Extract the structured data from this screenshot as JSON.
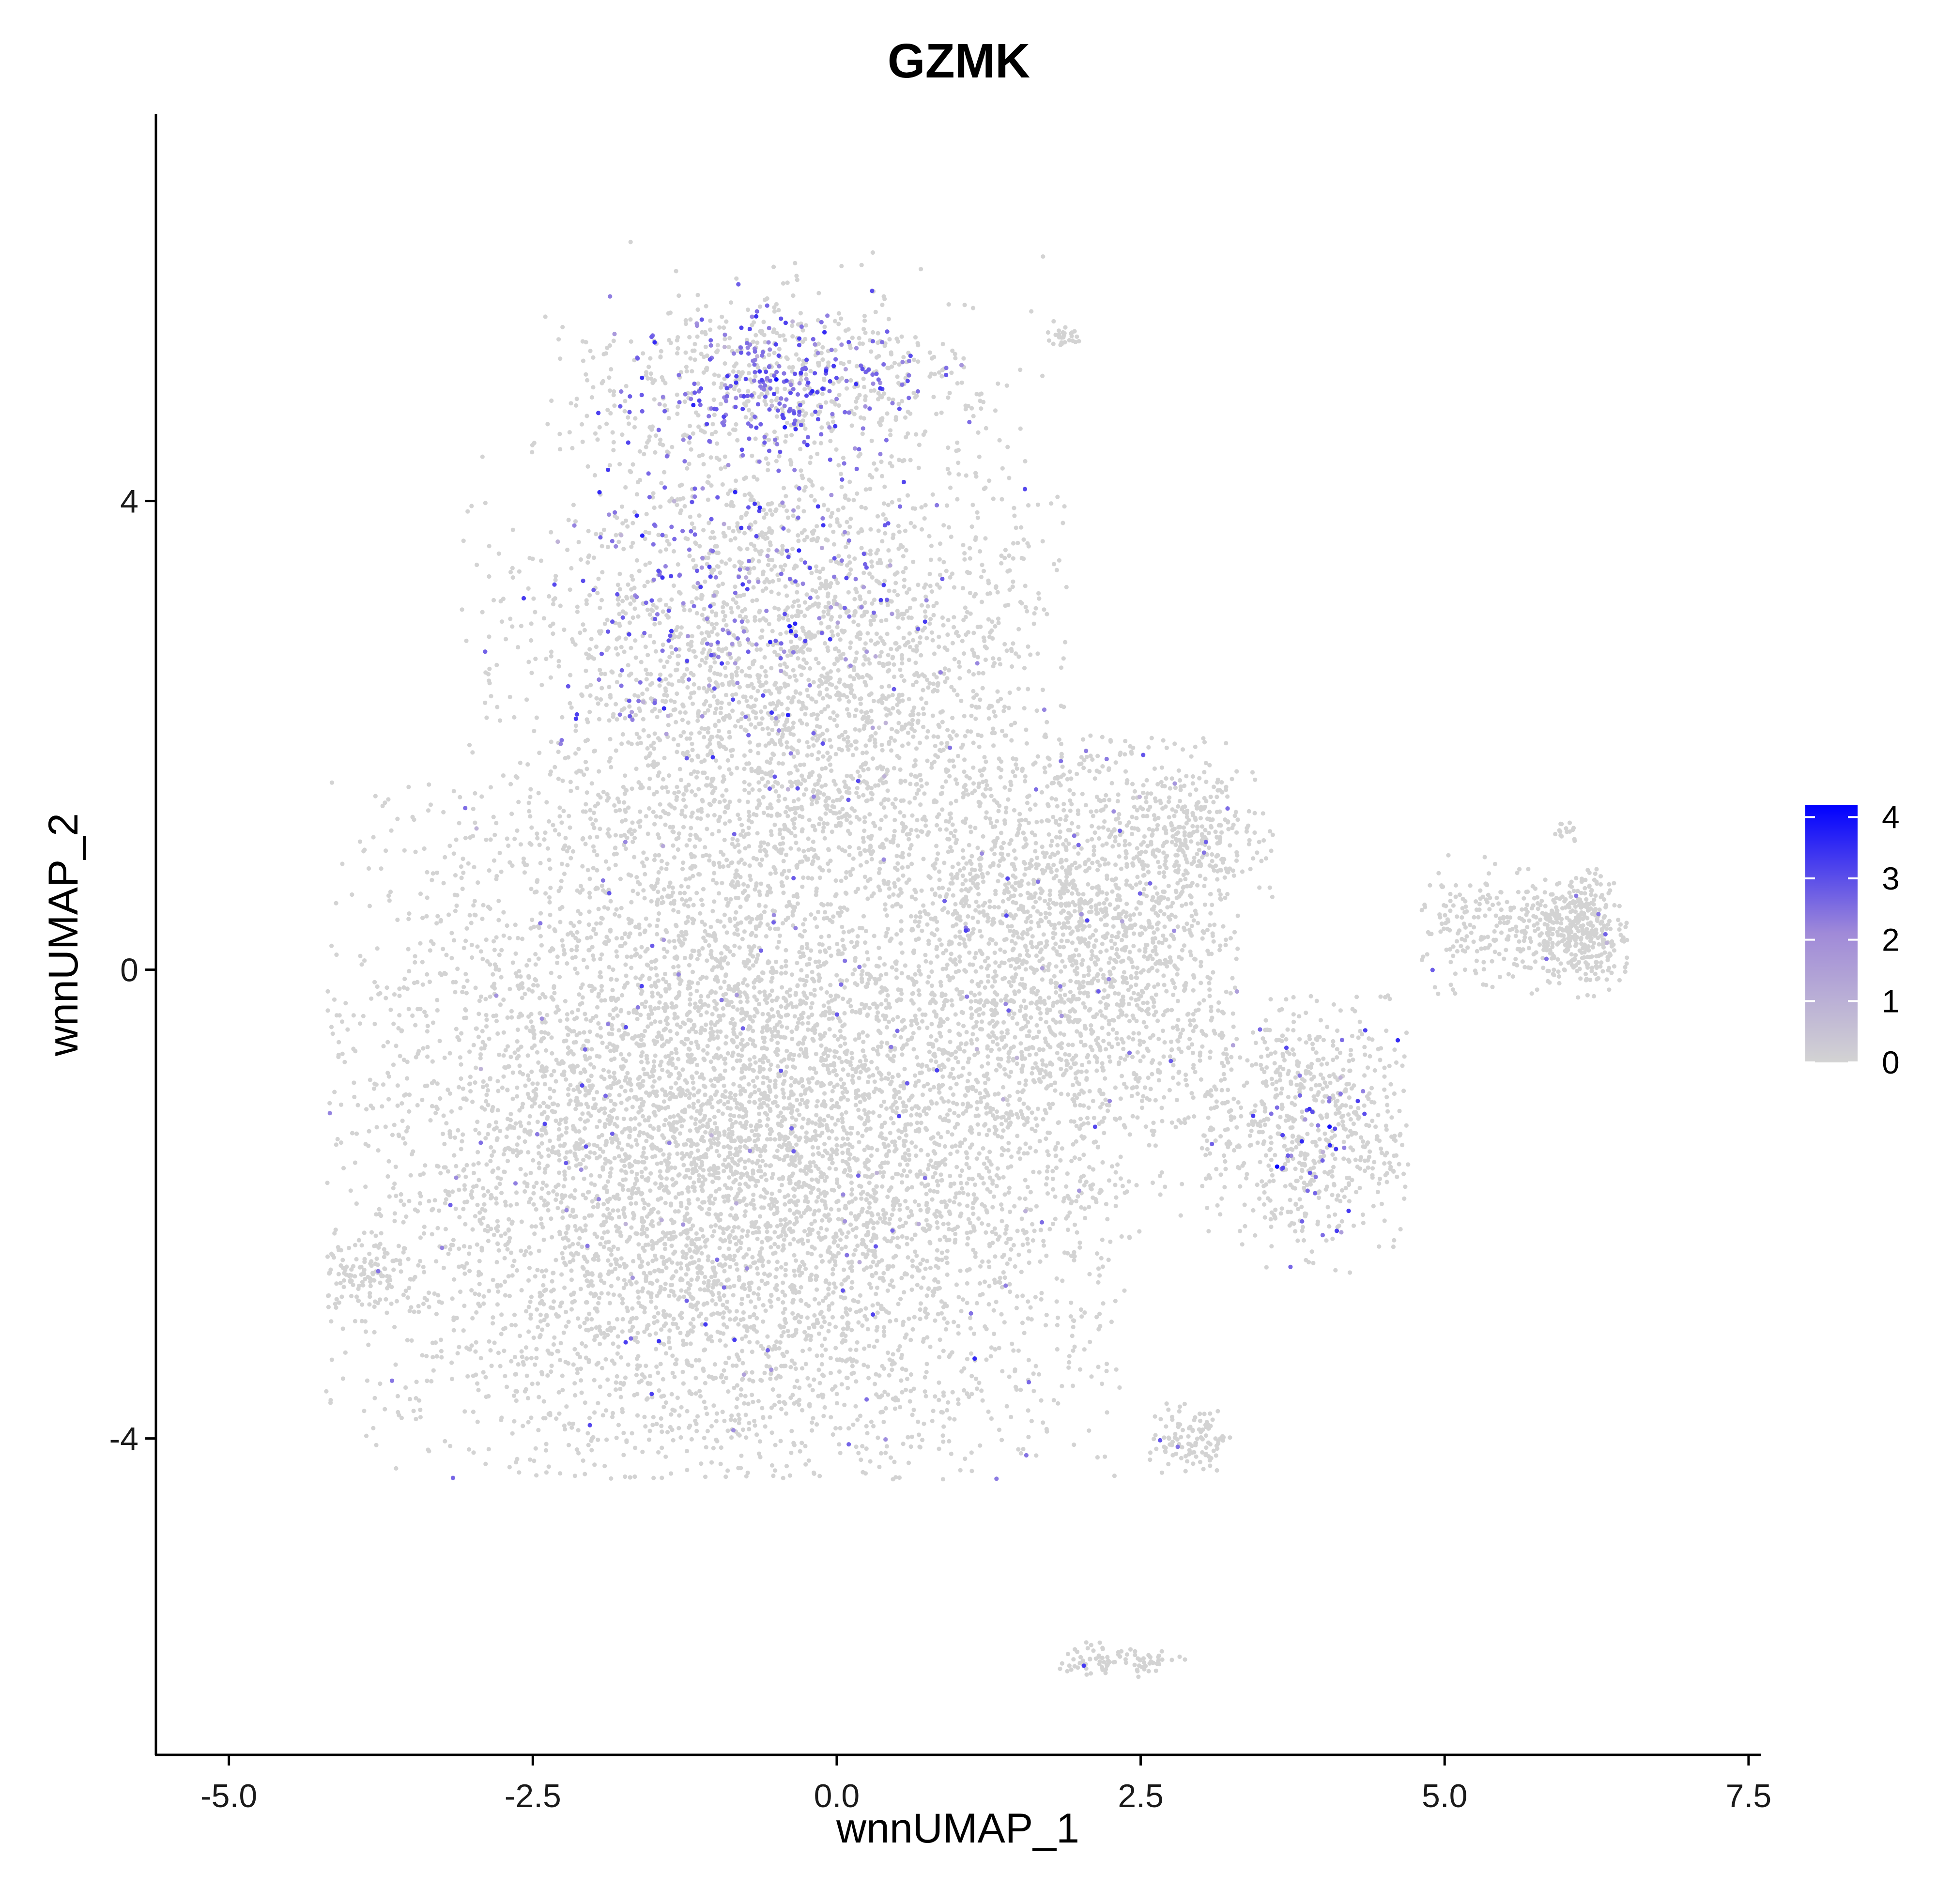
{
  "chart_data": {
    "type": "scatter",
    "title": "GZMK",
    "xlabel": "wnnUMAP_1",
    "ylabel": "wnnUMAP_2",
    "xlim": [
      -5.6,
      7.6
    ],
    "ylim": [
      -6.7,
      7.3
    ],
    "x_ticks": [
      {
        "value": -5.0,
        "label": "-5.0"
      },
      {
        "value": -2.5,
        "label": "-2.5"
      },
      {
        "value": 0.0,
        "label": "0.0"
      },
      {
        "value": 2.5,
        "label": "2.5"
      },
      {
        "value": 5.0,
        "label": "5.0"
      },
      {
        "value": 7.5,
        "label": "7.5"
      }
    ],
    "y_ticks": [
      {
        "value": 4,
        "label": "4"
      },
      {
        "value": 0,
        "label": "0"
      },
      {
        "value": -4,
        "label": "-4"
      }
    ],
    "grid": false,
    "legend": {
      "position": "right",
      "min": 0,
      "max": 4.2,
      "low_color": "#d3d3d3",
      "high_color": "#0000ff",
      "ticks": [
        {
          "value": 0,
          "label": "0"
        },
        {
          "value": 1,
          "label": "1"
        },
        {
          "value": 2,
          "label": "2"
        },
        {
          "value": 3,
          "label": "3"
        },
        {
          "value": 4,
          "label": "4"
        }
      ]
    },
    "clusters": [
      {
        "name": "main-body",
        "cx": -0.8,
        "cy": -1.4,
        "sx": 1.55,
        "sy": 1.6,
        "n": 7400,
        "xmin": -4.2,
        "xmax": 2.4,
        "ymin": -4.35,
        "ymax": 1.6
      },
      {
        "name": "upper-body",
        "cx": -0.4,
        "cy": 2.6,
        "sx": 1.1,
        "sy": 1.05,
        "n": 3000,
        "xmin": -3.1,
        "xmax": 1.9,
        "ymin": 0.6,
        "ymax": 6.1
      },
      {
        "name": "top-crest",
        "cx": -0.5,
        "cy": 5.0,
        "sx": 0.75,
        "sy": 0.35,
        "n": 750,
        "xmin": -2.4,
        "xmax": 1.2,
        "ymin": 4.3,
        "ymax": 6.3
      },
      {
        "name": "mid-right",
        "cx": 2.1,
        "cy": 0.2,
        "sx": 0.75,
        "sy": 1.05,
        "n": 1800,
        "xmin": 0.8,
        "xmax": 3.3,
        "ymin": -2.6,
        "ymax": 2.0
      },
      {
        "name": "right-patch",
        "cx": 3.0,
        "cy": 1.1,
        "sx": 0.35,
        "sy": 0.35,
        "n": 220,
        "xmin": 2.4,
        "xmax": 3.6,
        "ymin": 0.6,
        "ymax": 1.7
      },
      {
        "name": "lower-right-band",
        "cx": 3.9,
        "cy": -1.3,
        "sx": 0.5,
        "sy": 0.55,
        "n": 700,
        "xmin": 3.0,
        "xmax": 4.7,
        "ymin": -2.6,
        "ymax": -0.2
      },
      {
        "name": "right-arm",
        "cx": 5.6,
        "cy": 0.35,
        "sx": 0.55,
        "sy": 0.28,
        "n": 320,
        "xmin": 4.8,
        "xmax": 6.4,
        "ymin": -0.3,
        "ymax": 1.0
      },
      {
        "name": "right-tip",
        "cx": 6.1,
        "cy": 0.3,
        "sx": 0.22,
        "sy": 0.25,
        "n": 300,
        "xmin": 5.6,
        "xmax": 6.5,
        "ymin": -0.1,
        "ymax": 0.8
      },
      {
        "name": "lower-small-cluster",
        "cx": 2.9,
        "cy": -4.0,
        "sx": 0.18,
        "sy": 0.14,
        "n": 110,
        "xmin": 2.4,
        "xmax": 3.3,
        "ymin": -4.3,
        "ymax": -3.4
      },
      {
        "name": "bottom-arc",
        "cx": 2.3,
        "cy": -5.9,
        "sx": 0.32,
        "sy": 0.07,
        "n": 90,
        "xmin": 1.8,
        "xmax": 2.9,
        "ymin": -6.15,
        "ymax": -5.5
      },
      {
        "name": "upper-right-speck",
        "cx": 1.9,
        "cy": 5.4,
        "sx": 0.08,
        "sy": 0.05,
        "n": 25,
        "xmin": 1.7,
        "xmax": 2.0,
        "ymin": 5.3,
        "ymax": 5.5
      },
      {
        "name": "far-right-speck",
        "cx": 6.0,
        "cy": 1.2,
        "sx": 0.06,
        "sy": 0.05,
        "n": 15,
        "xmin": 5.9,
        "xmax": 6.1,
        "ymin": 1.1,
        "ymax": 1.3
      },
      {
        "name": "left-tip",
        "cx": -3.9,
        "cy": -2.6,
        "sx": 0.2,
        "sy": 0.15,
        "n": 120,
        "xmin": -4.2,
        "xmax": -3.5,
        "ymin": -2.9,
        "ymax": -2.3
      }
    ],
    "expression_regions": [
      {
        "name": "top-crest",
        "cx": -0.6,
        "cy": 5.0,
        "sx": 0.9,
        "sy": 0.5,
        "fraction": 0.48,
        "mean": 1.8
      },
      {
        "name": "upper-left",
        "cx": -1.4,
        "cy": 3.4,
        "sx": 0.7,
        "sy": 0.9,
        "fraction": 0.28,
        "mean": 1.7
      },
      {
        "name": "upper-center",
        "cx": 0.0,
        "cy": 3.5,
        "sx": 0.55,
        "sy": 0.5,
        "fraction": 0.2,
        "mean": 1.7
      },
      {
        "name": "lower-right-band",
        "cx": 3.9,
        "cy": -1.5,
        "sx": 0.4,
        "sy": 0.6,
        "fraction": 0.14,
        "mean": 2.0
      }
    ],
    "baseline_fraction": 0.015
  }
}
